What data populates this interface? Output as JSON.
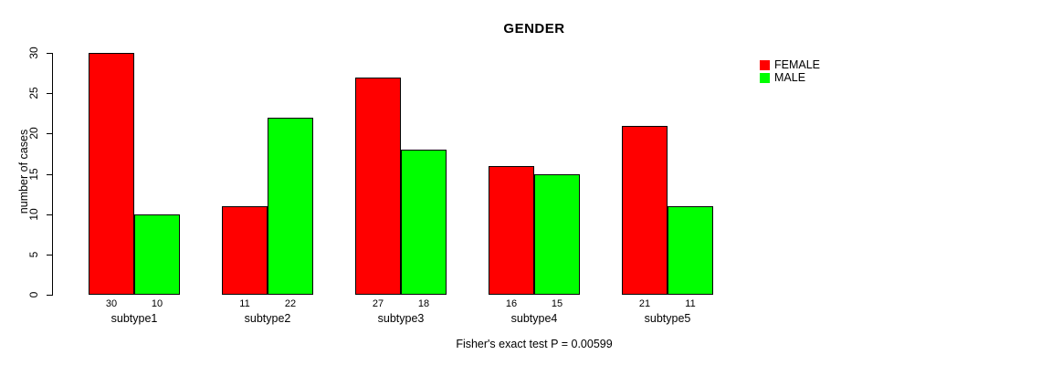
{
  "title": "GENDER",
  "caption": "Fisher's exact test P = 0.00599",
  "colors": {
    "female": "#ff0000",
    "male": "#00ff00",
    "axis": "#000000",
    "background": "#ffffff"
  },
  "chart_data": {
    "type": "bar",
    "title": "GENDER",
    "xlabel": "",
    "ylabel": "number of cases",
    "categories": [
      "subtype1",
      "subtype2",
      "subtype3",
      "subtype4",
      "subtype5"
    ],
    "series": [
      {
        "name": "FEMALE",
        "color": "#ff0000",
        "values": [
          30,
          11,
          27,
          16,
          21
        ]
      },
      {
        "name": "MALE",
        "color": "#00ff00",
        "values": [
          10,
          22,
          18,
          15,
          11
        ]
      }
    ],
    "bar_value_labels": [
      [
        30,
        11,
        27,
        16,
        21
      ],
      [
        10,
        22,
        18,
        15,
        11
      ]
    ],
    "ylim": [
      0,
      30
    ],
    "yticks": [
      0,
      5,
      10,
      15,
      20,
      25,
      30
    ],
    "grid": false,
    "legend_position": "top-right",
    "legend_entries": [
      "FEMALE",
      "MALE"
    ],
    "annotation": "Fisher's exact test P = 0.00599"
  }
}
